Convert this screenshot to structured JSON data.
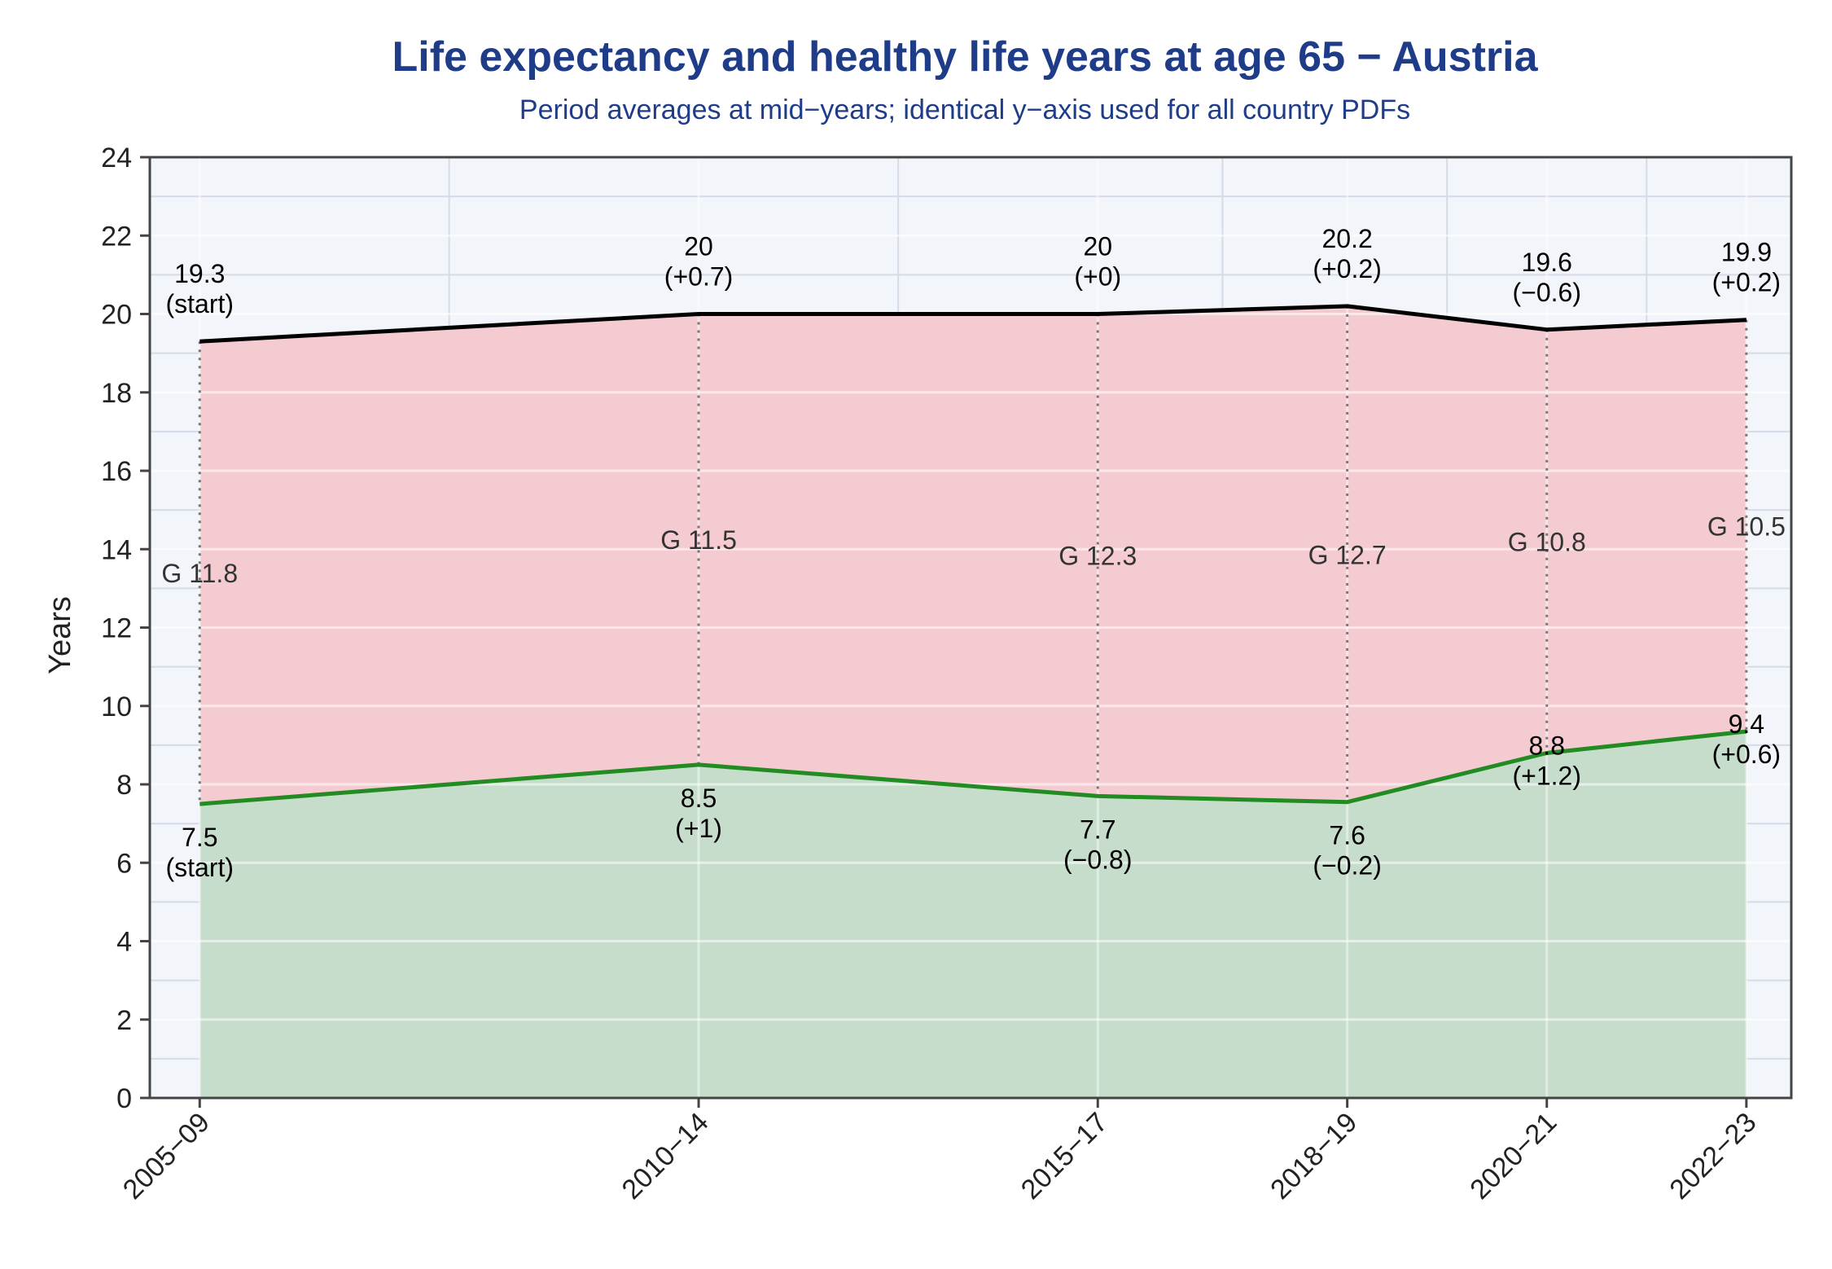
{
  "chart_data": {
    "type": "area",
    "title": "Life expectancy and healthy life years at age 65 − Austria",
    "subtitle": "Period averages at mid−years; identical y−axis used for all country PDFs",
    "ylabel": "Years",
    "xlabel": "",
    "ylim": [
      0,
      24
    ],
    "yticks": [
      "0",
      "2",
      "4",
      "6",
      "8",
      "10",
      "12",
      "14",
      "16",
      "18",
      "20",
      "22",
      "24"
    ],
    "categories": [
      "2005−09",
      "2010−14",
      "2015−17",
      "2018−19",
      "2020−21",
      "2022−23"
    ],
    "x_mid": [
      2007,
      2012,
      2016,
      2018.5,
      2020.5,
      2022.5
    ],
    "xlim": [
      2006.5,
      2022.95
    ],
    "grid": true,
    "series": [
      {
        "key": "le",
        "values": [
          19.3,
          20.0,
          20.0,
          20.2,
          19.6,
          19.85
        ],
        "value_labels": [
          "19.3",
          "20",
          "20",
          "20.2",
          "19.6",
          "19.9"
        ],
        "change_labels": [
          "(start)",
          "(+0.7)",
          "(+0)",
          "(+0.2)",
          "(−0.6)",
          "(+0.2)"
        ],
        "line_color": "#000000",
        "fill_color": "#f4cbd1"
      },
      {
        "key": "hly",
        "values": [
          7.5,
          8.5,
          7.7,
          7.55,
          8.8,
          9.35
        ],
        "value_labels": [
          "7.5",
          "8.5",
          "7.7",
          "7.6",
          "8.8",
          "9.4"
        ],
        "change_labels": [
          "(start)",
          "(+1)",
          "(−0.8)",
          "(−0.2)",
          "(+1.2)",
          "(+0.6)"
        ],
        "line_color": "#228b22",
        "fill_color": "#c6ddcc"
      }
    ],
    "gap_labels": [
      "G 11.8",
      "G 11.5",
      "G 12.3",
      "G 12.7",
      "G 10.8",
      "G 10.5"
    ],
    "colors": {
      "plot_bg": "#f2f5fa",
      "major_grid": "#ffffff",
      "minor_grid": "#d5dbe7",
      "title": "#1f3c88",
      "axis": "#444444",
      "dotted": "#777777"
    }
  }
}
